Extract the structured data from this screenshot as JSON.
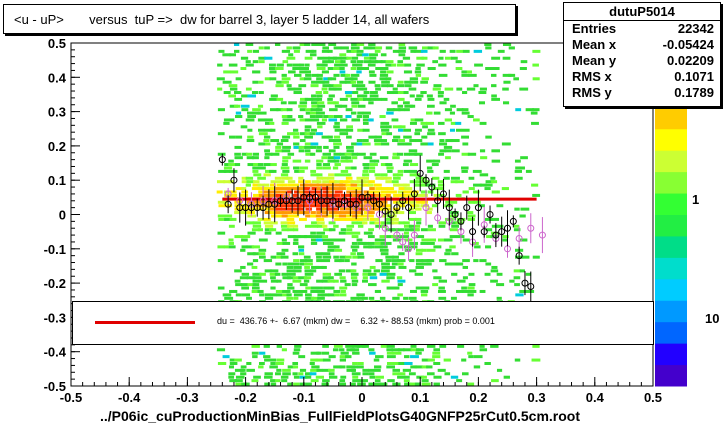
{
  "title": "<u - uP>       versus  tuP =>  dw for barrel 3, layer 5 ladder 14, all wafers",
  "stats": {
    "name": "dutuP5014",
    "rows": [
      {
        "label": "Entries",
        "value": "22342"
      },
      {
        "label": "Mean x",
        "value": "-0.05424"
      },
      {
        "label": "Mean y",
        "value": "0.02209"
      },
      {
        "label": "RMS x",
        "value": "0.1071"
      },
      {
        "label": "RMS y",
        "value": "0.1789"
      }
    ]
  },
  "fit_text": "du =  436.76 +-  6.67 (mkm) dw =    6.32 +- 88.53 (mkm) prob = 0.001",
  "xaxis_title": "../P06ic_cuProductionMinBias_FullFieldPlotsG40GNFP25rCut0.5cm.root",
  "colors": {
    "fit_line": "#e00000",
    "profile_black": "#000000",
    "profile_pink": "#cc66cc"
  },
  "chart_data": {
    "type": "heatmap",
    "xlim": [
      -0.5,
      0.5
    ],
    "ylim": [
      -0.5,
      0.5
    ],
    "x_ticks": [
      "-0.5",
      "-0.4",
      "-0.3",
      "-0.2",
      "-0.1",
      "0",
      "0.1",
      "0.2",
      "0.3",
      "0.4",
      "0.5"
    ],
    "y_ticks": [
      "-0.5",
      "-0.4",
      "-0.3",
      "-0.2",
      "-0.1",
      "0",
      "0.1",
      "0.2",
      "0.3",
      "0.4",
      "0.5"
    ],
    "z_ticks": [
      "1",
      "10"
    ],
    "fit_line": {
      "x": [
        -0.24,
        0.3
      ],
      "y": [
        0.045,
        0.045
      ]
    },
    "profile_black": {
      "x": [
        -0.24,
        -0.23,
        -0.22,
        -0.21,
        -0.2,
        -0.19,
        -0.18,
        -0.17,
        -0.16,
        -0.15,
        -0.14,
        -0.13,
        -0.12,
        -0.11,
        -0.1,
        -0.09,
        -0.08,
        -0.07,
        -0.06,
        -0.05,
        -0.04,
        -0.03,
        -0.02,
        -0.01,
        0,
        0.01,
        0.02,
        0.03,
        0.04,
        0.05,
        0.06,
        0.07,
        0.08,
        0.09,
        0.1,
        0.11,
        0.12,
        0.13,
        0.14,
        0.15,
        0.16,
        0.17,
        0.18,
        0.19,
        0.2,
        0.21,
        0.22,
        0.23,
        0.24,
        0.25,
        0.26,
        0.27,
        0.28,
        0.29
      ],
      "y": [
        0.16,
        0.03,
        0.1,
        0.02,
        0.02,
        0.02,
        0.02,
        0.02,
        0.03,
        0.03,
        0.04,
        0.04,
        0.04,
        0.04,
        0.05,
        0.05,
        0.05,
        0.04,
        0.04,
        0.04,
        0.03,
        0.04,
        0.03,
        0.03,
        0.05,
        0.05,
        0.04,
        0.03,
        0.01,
        0.0,
        0.02,
        0.04,
        0.02,
        0.06,
        0.12,
        0.1,
        0.08,
        0.04,
        0.06,
        0.02,
        0.0,
        -0.02,
        0.02,
        -0.05,
        0.02,
        -0.05,
        0.0,
        -0.06,
        -0.05,
        -0.04,
        -0.02,
        -0.12,
        -0.2,
        -0.21
      ]
    },
    "profile_pink": {
      "x": [
        -0.23,
        -0.21,
        -0.19,
        -0.17,
        -0.15,
        -0.13,
        -0.11,
        -0.09,
        -0.07,
        -0.05,
        -0.03,
        -0.01,
        0.01,
        0.03,
        0.04,
        0.06,
        0.07,
        0.08,
        0.09,
        0.11,
        0.13,
        0.15,
        0.17,
        0.19,
        0.21,
        0.23,
        0.25,
        0.27,
        0.29,
        0.31
      ],
      "y": [
        0.06,
        0.04,
        0.03,
        0.04,
        0.04,
        0.05,
        0.04,
        0.04,
        0.04,
        0.03,
        0.03,
        0.02,
        0.02,
        0.0,
        -0.04,
        -0.06,
        -0.08,
        -0.1,
        -0.06,
        0.02,
        -0.01,
        -0.02,
        -0.05,
        -0.08,
        -0.03,
        -0.07,
        -0.1,
        -0.07,
        -0.04,
        -0.06
      ]
    }
  }
}
